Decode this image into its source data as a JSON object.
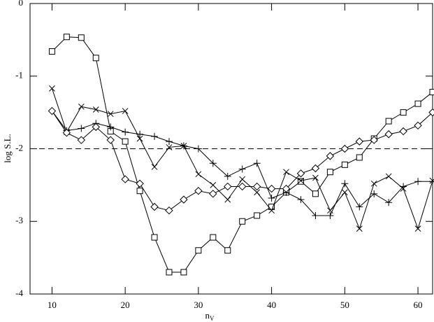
{
  "chart_data": {
    "type": "line",
    "xlabel": "n",
    "xlabel_sub": "V",
    "ylabel": "log S.L.",
    "x": [
      10,
      12,
      14,
      16,
      18,
      20,
      22,
      24,
      26,
      28,
      30,
      32,
      34,
      36,
      38,
      40,
      42,
      44,
      46,
      48,
      50,
      52,
      54,
      56,
      58,
      60,
      62
    ],
    "series": [
      {
        "marker": "square",
        "color": "#000000",
        "values": [
          -0.66,
          -0.46,
          -0.47,
          -0.75,
          -1.76,
          -1.9,
          -2.58,
          -3.22,
          -3.7,
          -3.7,
          -3.4,
          -3.22,
          -3.4,
          -3.0,
          -2.92,
          -2.8,
          -2.6,
          -2.45,
          -2.62,
          -2.32,
          -2.22,
          -2.12,
          -1.86,
          -1.62,
          -1.5,
          -1.38,
          -1.22
        ]
      },
      {
        "marker": "cross",
        "color": "#000000",
        "values": [
          -1.17,
          -1.77,
          -1.42,
          -1.46,
          -1.52,
          -1.48,
          -1.86,
          -2.25,
          -1.98,
          -1.96,
          -2.35,
          -2.5,
          -2.7,
          -2.42,
          -2.6,
          -2.85,
          -2.32,
          -2.44,
          -2.4,
          -2.85,
          -2.6,
          -3.1,
          -2.48,
          -2.38,
          -2.55,
          -3.1,
          -2.44
        ]
      },
      {
        "marker": "plus",
        "color": "#000000",
        "values": [
          -1.48,
          -1.75,
          -1.72,
          -1.65,
          -1.7,
          -1.77,
          -1.8,
          -1.83,
          -1.9,
          -1.96,
          -2.0,
          -2.2,
          -2.38,
          -2.28,
          -2.2,
          -2.68,
          -2.6,
          -2.7,
          -2.92,
          -2.92,
          -2.48,
          -2.8,
          -2.62,
          -2.74,
          -2.52,
          -2.45,
          -2.45
        ]
      },
      {
        "marker": "diamond",
        "color": "#000000",
        "values": [
          -1.48,
          -1.78,
          -1.88,
          -1.7,
          -1.88,
          -2.42,
          -2.48,
          -2.8,
          -2.85,
          -2.7,
          -2.58,
          -2.62,
          -2.52,
          -2.52,
          -2.52,
          -2.55,
          -2.55,
          -2.34,
          -2.27,
          -2.1,
          -2.0,
          -1.9,
          -1.88,
          -1.8,
          -1.76,
          -1.68,
          -1.5
        ]
      }
    ],
    "reference_line": -2,
    "xlim": [
      7,
      62
    ],
    "ylim": [
      -4,
      0
    ],
    "xticks": [
      10,
      20,
      30,
      40,
      50,
      60
    ],
    "yticks": [
      0,
      -1,
      -2,
      -3,
      -4
    ],
    "grid": false
  }
}
